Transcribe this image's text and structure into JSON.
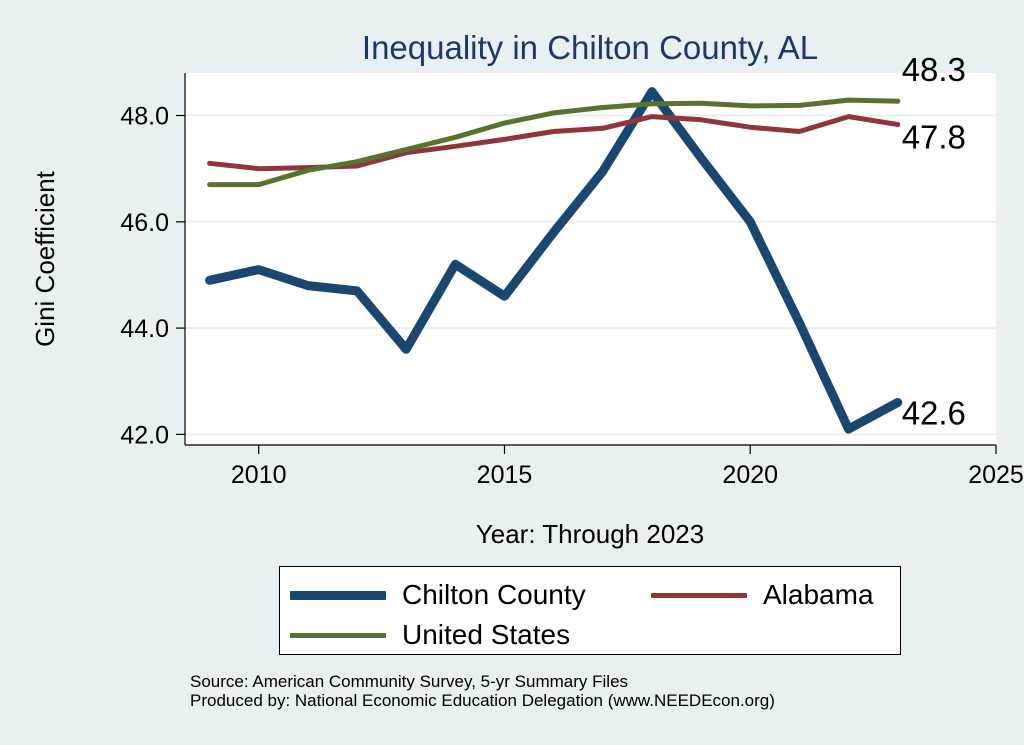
{
  "chart_data": {
    "type": "line",
    "title": "Inequality in Chilton County, AL",
    "xlabel": "Year: Through 2023",
    "ylabel": "Gini Coefficient",
    "xlim": [
      2008.5,
      2025
    ],
    "ylim": [
      41.8,
      48.8
    ],
    "x": [
      2009,
      2010,
      2011,
      2012,
      2013,
      2014,
      2015,
      2016,
      2017,
      2018,
      2019,
      2020,
      2021,
      2022,
      2023
    ],
    "x_ticks": [
      2010,
      2015,
      2020,
      2025
    ],
    "x_tick_labels": [
      "2010",
      "2015",
      "2020",
      "2025"
    ],
    "y_ticks": [
      42,
      44,
      46,
      48
    ],
    "y_tick_labels": [
      "42.0",
      "44.0",
      "46.0",
      "48.0"
    ],
    "grid": true,
    "series": [
      {
        "name": "Chilton County",
        "color": "#1a476f",
        "width": 9,
        "values": [
          44.9,
          45.1,
          44.8,
          44.7,
          43.6,
          45.2,
          44.6,
          45.8,
          46.95,
          48.45,
          47.2,
          46.0,
          44.1,
          42.1,
          42.6
        ],
        "end_label": "42.6"
      },
      {
        "name": "Alabama",
        "color": "#90353b",
        "width": 5,
        "values": [
          47.1,
          47.0,
          47.02,
          47.05,
          47.3,
          47.42,
          47.55,
          47.7,
          47.76,
          47.98,
          47.92,
          47.78,
          47.7,
          47.98,
          47.83
        ],
        "end_label": "47.8"
      },
      {
        "name": "United States",
        "color": "#55752f",
        "width": 5,
        "values": [
          46.7,
          46.7,
          46.97,
          47.13,
          47.36,
          47.59,
          47.86,
          48.05,
          48.15,
          48.22,
          48.23,
          48.18,
          48.19,
          48.29,
          48.27
        ],
        "end_label": "48.3"
      }
    ],
    "legend": [
      {
        "name": "Chilton County",
        "color": "#1a476f",
        "width": 9
      },
      {
        "name": "Alabama",
        "color": "#90353b",
        "width": 5
      },
      {
        "name": "United States",
        "color": "#55752f",
        "width": 5
      }
    ]
  },
  "source_line1": "Source: American Community Survey, 5-yr Summary Files",
  "source_line2": "Produced by: National Economic Education Delegation (www.NEEDEcon.org)"
}
